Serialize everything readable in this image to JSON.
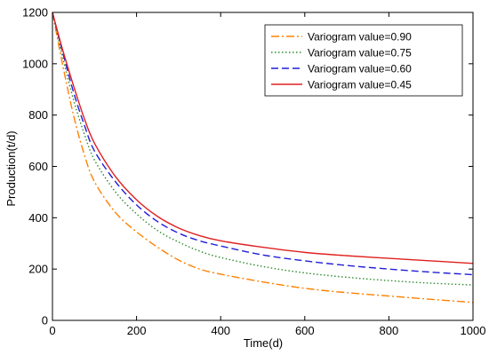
{
  "chart_data": {
    "type": "line",
    "title": "",
    "xlabel": "Time(d)",
    "ylabel": "Production(t/d)",
    "xlim": [
      0,
      1000
    ],
    "ylim": [
      0,
      1200
    ],
    "xticks": [
      "0",
      "200",
      "400",
      "600",
      "800",
      "1000"
    ],
    "yticks": [
      "0",
      "200",
      "400",
      "600",
      "800",
      "1000",
      "1200"
    ],
    "grid": false,
    "legend_position": "top-right",
    "x": [
      0,
      25,
      50,
      75,
      100,
      150,
      200,
      250,
      300,
      350,
      400,
      500,
      600,
      700,
      800,
      900,
      1000
    ],
    "series": [
      {
        "name": "Variogram value=0.90",
        "color": "#ff8000",
        "dash": "dash-dot",
        "values": [
          1200,
          990,
          800,
          650,
          540,
          420,
          345,
          285,
          235,
          200,
          180,
          150,
          125,
          108,
          95,
          82,
          70
        ]
      },
      {
        "name": "Variogram value=0.75",
        "color": "#2e8b2e",
        "dash": "dotted",
        "values": [
          1200,
          1020,
          860,
          730,
          625,
          500,
          415,
          350,
          305,
          270,
          245,
          210,
          185,
          168,
          155,
          145,
          138
        ]
      },
      {
        "name": "Variogram value=0.60",
        "color": "#1f1fd6",
        "dash": "dashed",
        "values": [
          1200,
          1040,
          890,
          765,
          660,
          540,
          450,
          385,
          340,
          310,
          290,
          255,
          232,
          214,
          200,
          188,
          178
        ]
      },
      {
        "name": "Variogram value=0.45",
        "color": "#e02020",
        "dash": "solid",
        "values": [
          1200,
          1050,
          915,
          790,
          690,
          560,
          470,
          405,
          360,
          330,
          310,
          285,
          265,
          252,
          242,
          232,
          222
        ]
      }
    ]
  }
}
